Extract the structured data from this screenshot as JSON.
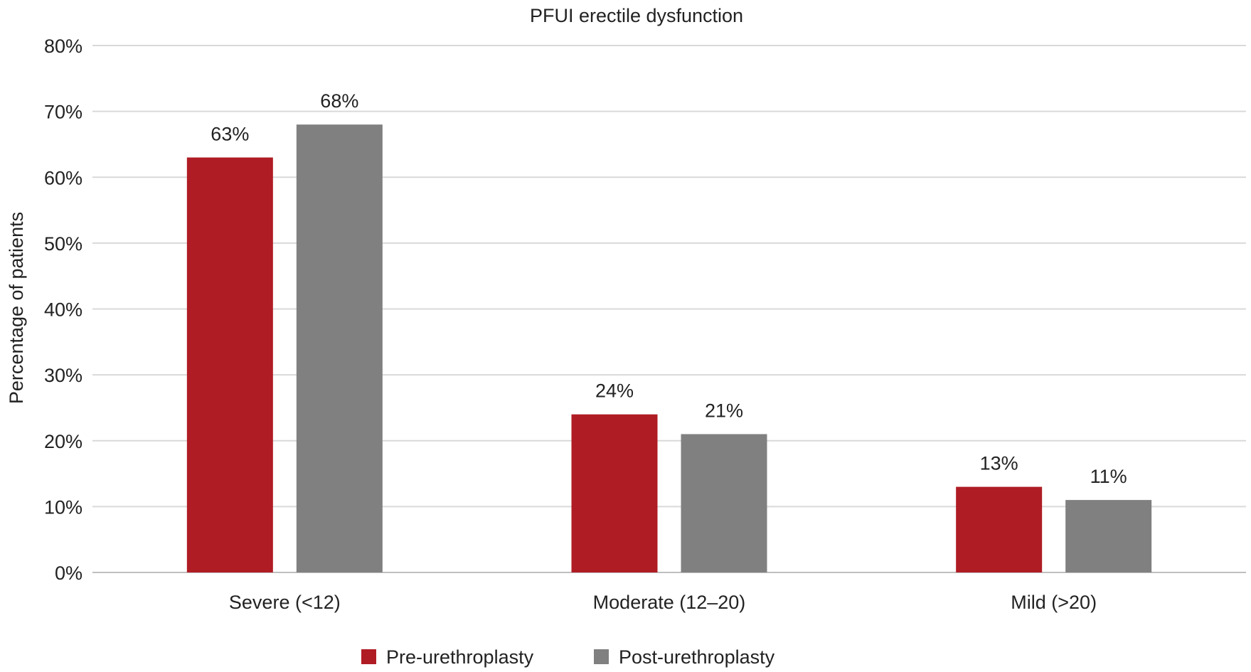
{
  "chart_data": {
    "type": "bar",
    "title": "PFUI erectile dysfunction",
    "xlabel": "",
    "ylabel": "Percentage of patients",
    "categories": [
      "Severe (<12)",
      "Moderate (12–20)",
      "Mild (>20)"
    ],
    "series": [
      {
        "name": "Pre-urethroplasty",
        "values": [
          63,
          24,
          13
        ],
        "labels": [
          "63%",
          "24%",
          "13%"
        ],
        "color": "#B01C24"
      },
      {
        "name": "Post-urethroplasty",
        "values": [
          68,
          21,
          11
        ],
        "labels": [
          "68%",
          "21%",
          "11%"
        ],
        "color": "#808080"
      }
    ],
    "ylim": [
      0,
      80
    ],
    "yticks": [
      0,
      10,
      20,
      30,
      40,
      50,
      60,
      70,
      80
    ],
    "ytick_labels": [
      "0%",
      "10%",
      "20%",
      "30%",
      "40%",
      "50%",
      "60%",
      "70%",
      "80%"
    ],
    "grid": true,
    "legend": "bottom-center"
  }
}
